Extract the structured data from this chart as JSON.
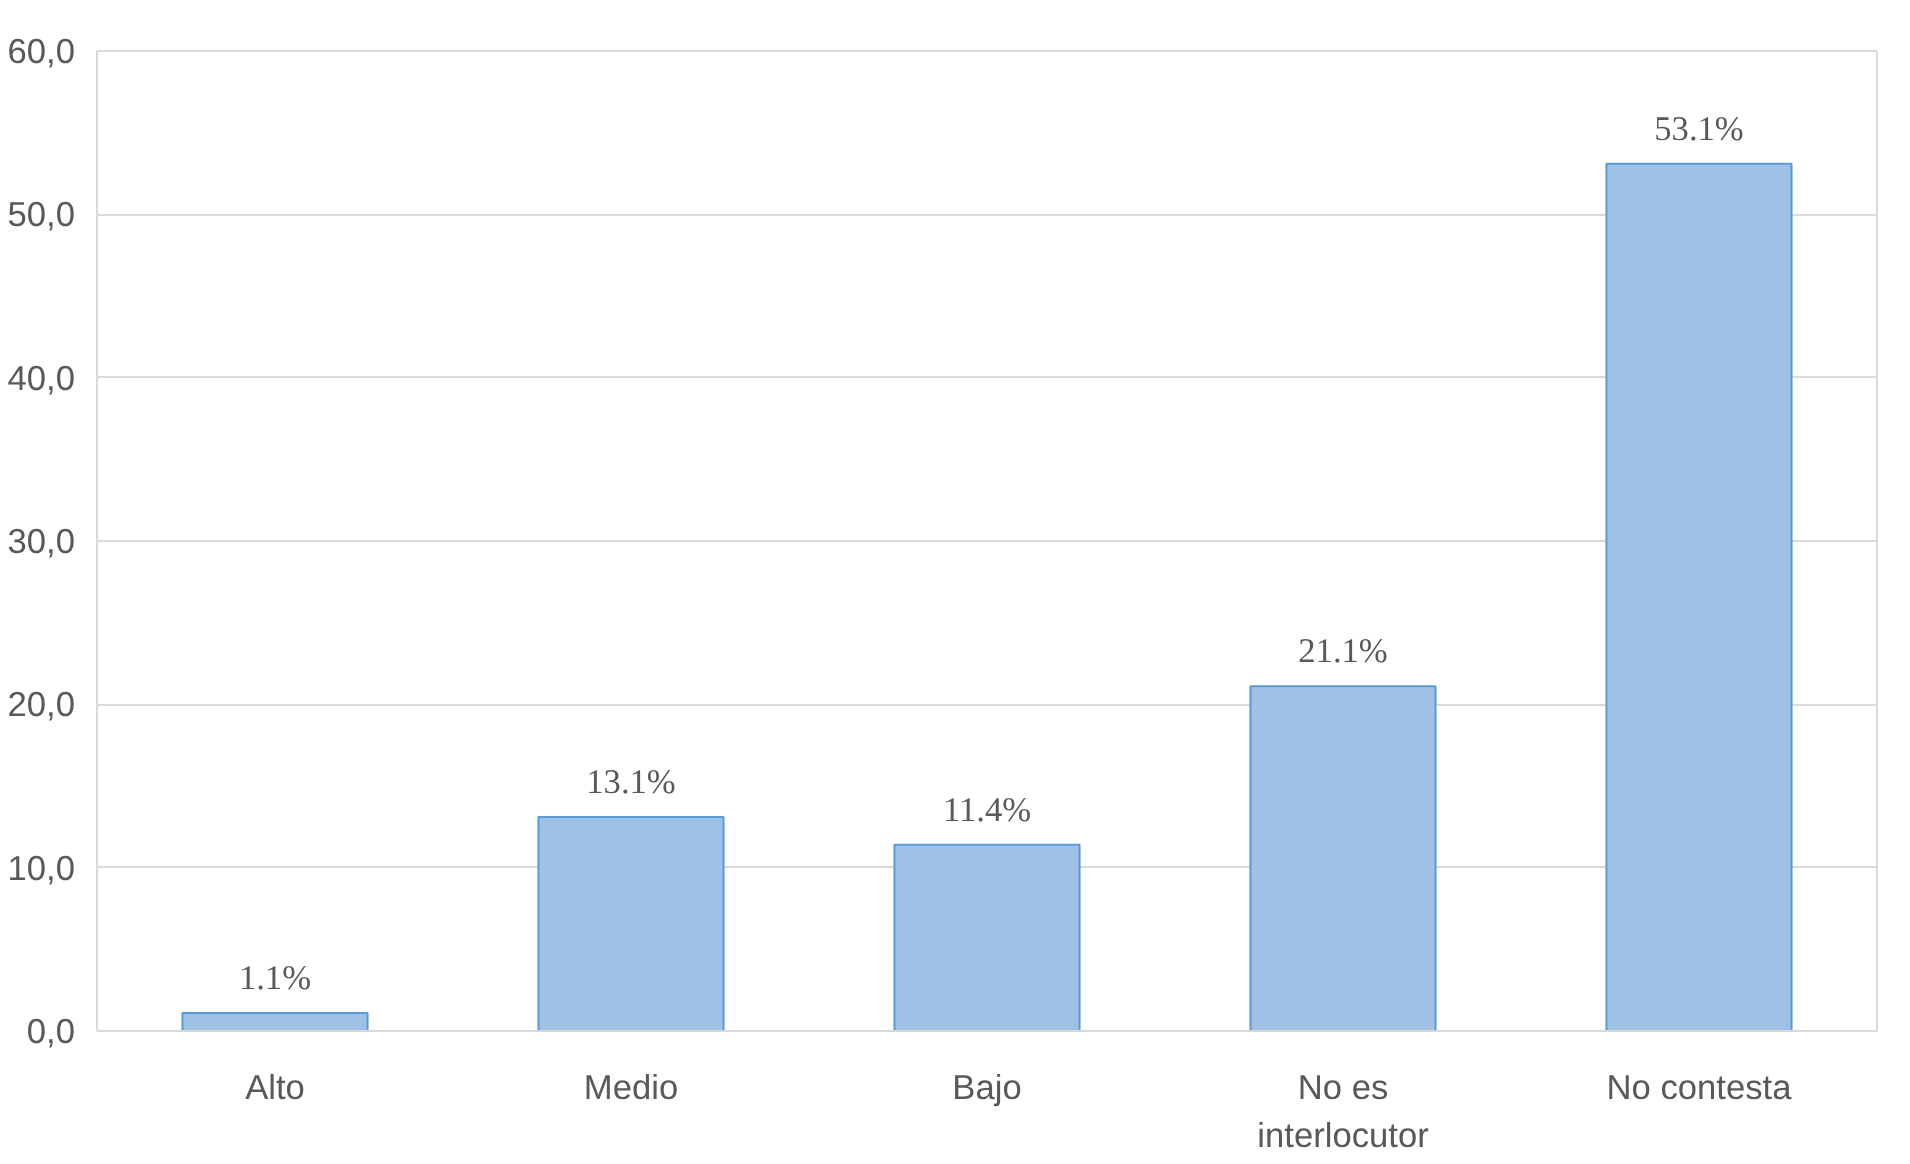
{
  "chart_data": {
    "type": "bar",
    "categories": [
      "Alto",
      "Medio",
      "Bajo",
      "No es interlocutor",
      "No contesta"
    ],
    "values": [
      1.1,
      13.1,
      11.4,
      21.1,
      53.1
    ],
    "value_labels": [
      "1.1%",
      "13.1%",
      "11.4%",
      "21.1%",
      "53.1%"
    ],
    "color": "#9fc1e6",
    "ylim": [
      0,
      60
    ],
    "yticks": [
      {
        "value": 0,
        "label": "0,0"
      },
      {
        "value": 10,
        "label": "10,0"
      },
      {
        "value": 20,
        "label": "20,0"
      },
      {
        "value": 30,
        "label": "30,0"
      },
      {
        "value": 40,
        "label": "40,0"
      },
      {
        "value": 50,
        "label": "50,0"
      },
      {
        "value": 60,
        "label": "60,0"
      }
    ],
    "grid": "y"
  }
}
